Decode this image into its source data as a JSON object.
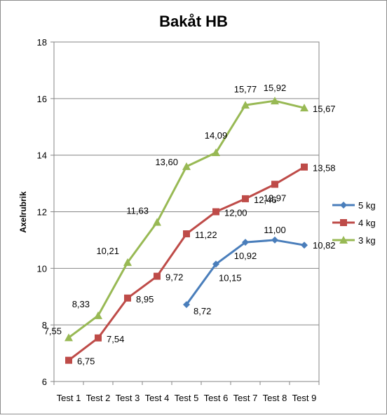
{
  "chart_data": {
    "type": "line",
    "title": "Bakåt HB",
    "ylabel": "Axelrubrik",
    "xlabel": "",
    "ylim": [
      6,
      18
    ],
    "yticks": [
      "6",
      "8",
      "10",
      "12",
      "14",
      "16",
      "18"
    ],
    "grid": "horizontal",
    "legend_position": "right",
    "categories": [
      "Test 1",
      "Test 2",
      "Test 3",
      "Test 4",
      "Test 5",
      "Test 6",
      "Test 7",
      "Test 8",
      "Test 9"
    ],
    "series": [
      {
        "name": "5 kg",
        "color": "#4a7ebb",
        "marker": "diamond",
        "values": [
          null,
          null,
          null,
          null,
          8.72,
          10.15,
          10.92,
          11.0,
          10.82
        ],
        "labels": [
          null,
          null,
          null,
          null,
          "8,72",
          "10,15",
          "10,92",
          "11,00",
          "10,82"
        ]
      },
      {
        "name": "4 kg",
        "color": "#be4b48",
        "marker": "square",
        "values": [
          6.75,
          7.54,
          8.95,
          9.72,
          11.22,
          12.0,
          12.46,
          12.97,
          13.58
        ],
        "labels": [
          "6,75",
          "7,54",
          "8,95",
          "9,72",
          "11,22",
          "12,00",
          "12,46",
          "12,97",
          "13,58"
        ]
      },
      {
        "name": "3 kg",
        "color": "#98b954",
        "marker": "triangle",
        "values": [
          7.55,
          8.33,
          10.21,
          11.63,
          13.6,
          14.09,
          15.77,
          15.92,
          15.67
        ],
        "labels": [
          "7,55",
          "8,33",
          "10,21",
          "11,63",
          "13,60",
          "14,09",
          "15,77",
          "15,92",
          "15,67"
        ]
      }
    ]
  }
}
